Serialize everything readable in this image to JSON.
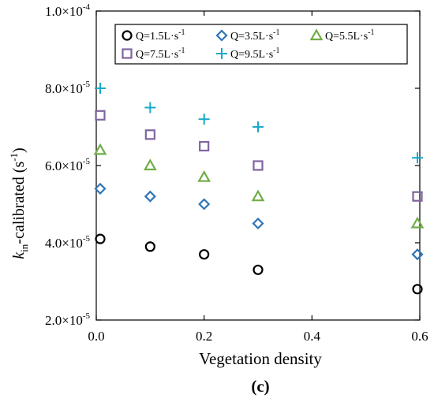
{
  "chart_data": {
    "type": "scatter",
    "xlabel": "Vegetation density",
    "ylabel_main": "k",
    "ylabel_sub": "in",
    "ylabel_rest": "-calibrated (s",
    "ylabel_sup": "-1",
    "ylabel_close": ")",
    "panel_label": "(c)",
    "xlim": [
      0.0,
      0.6
    ],
    "ylim": [
      2e-05,
      0.0001
    ],
    "x_ticks": [
      0.0,
      0.2,
      0.4,
      0.6
    ],
    "x_tick_labels": [
      "0.0",
      "0.2",
      "0.4",
      "0.6"
    ],
    "y_ticks": [
      {
        "value": 2e-05,
        "mant": "2.0×10",
        "exp": "-5"
      },
      {
        "value": 4e-05,
        "mant": "4.0×10",
        "exp": "-5"
      },
      {
        "value": 6e-05,
        "mant": "6.0×10",
        "exp": "-5"
      },
      {
        "value": 8e-05,
        "mant": "8.0×10",
        "exp": "-5"
      },
      {
        "value": 0.0001,
        "mant": "1.0×10",
        "exp": "-4"
      }
    ],
    "grid": false,
    "legend_placement": "top",
    "x": [
      0.0,
      0.1,
      0.2,
      0.3,
      0.6
    ],
    "series": [
      {
        "name": "Q=1.5L·s",
        "name_sup": "-1",
        "marker": "circle",
        "color": "#000000",
        "values": [
          4.1e-05,
          3.9e-05,
          3.7e-05,
          3.3e-05,
          2.8e-05
        ]
      },
      {
        "name": "Q=3.5L·s",
        "name_sup": "-1",
        "marker": "diamond",
        "color": "#2e75b6",
        "values": [
          5.4e-05,
          5.2e-05,
          5e-05,
          4.5e-05,
          3.7e-05
        ]
      },
      {
        "name": "Q=5.5L·s",
        "name_sup": "-1",
        "marker": "triangle",
        "color": "#70ad47",
        "values": [
          6.4e-05,
          6e-05,
          5.7e-05,
          5.2e-05,
          4.5e-05
        ]
      },
      {
        "name": "Q=7.5L·s",
        "name_sup": "-1",
        "marker": "square",
        "color": "#8064a2",
        "values": [
          7.3e-05,
          6.8e-05,
          6.5e-05,
          6e-05,
          5.2e-05
        ]
      },
      {
        "name": "Q=9.5L·s",
        "name_sup": "-1",
        "marker": "plus",
        "color": "#17a9c9",
        "values": [
          8e-05,
          7.5e-05,
          7.2e-05,
          7e-05,
          6.2e-05
        ]
      }
    ]
  }
}
